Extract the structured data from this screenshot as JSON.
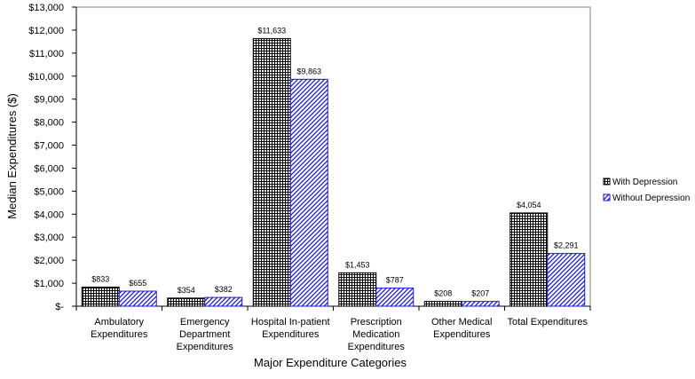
{
  "chart_data": {
    "type": "bar",
    "categories": [
      [
        "Ambulatory",
        "Expenditures"
      ],
      [
        "Emergency",
        "Department",
        "Expenditures"
      ],
      [
        "Hospital In-patient",
        "Expenditures"
      ],
      [
        "Prescription",
        "Medication",
        "Expenditures"
      ],
      [
        "Other Medical",
        "Expenditures"
      ],
      [
        "Total Expenditures"
      ]
    ],
    "series": [
      {
        "name": "With Depression",
        "values": [
          833,
          354,
          11633,
          1453,
          208,
          4054
        ],
        "labels": [
          "$833",
          "$354",
          "$11,633",
          "$1,453",
          "$208",
          "$4,054"
        ],
        "pattern": "grid",
        "color": "#000000"
      },
      {
        "name": "Without Depression",
        "values": [
          655,
          382,
          9863,
          787,
          207,
          2291
        ],
        "labels": [
          "$655",
          "$382",
          "$9,863",
          "$787",
          "$207",
          "$2,291"
        ],
        "pattern": "diagonal",
        "color": "#1a1acc"
      }
    ],
    "ylim": [
      0,
      13000
    ],
    "yticks": [
      0,
      1000,
      2000,
      3000,
      4000,
      5000,
      6000,
      7000,
      8000,
      9000,
      10000,
      11000,
      12000,
      13000
    ],
    "ytick_labels": [
      "$-",
      "$1,000",
      "$2,000",
      "$3,000",
      "$4,000",
      "$5,000",
      "$6,000",
      "$7,000",
      "$8,000",
      "$9,000",
      "$10,000",
      "$11,000",
      "$12,000",
      "$13,000"
    ],
    "ylabel": "Median Expenditures ($)",
    "xlabel": "Major Expenditure Categories",
    "legend_position": "right",
    "grid": false
  }
}
